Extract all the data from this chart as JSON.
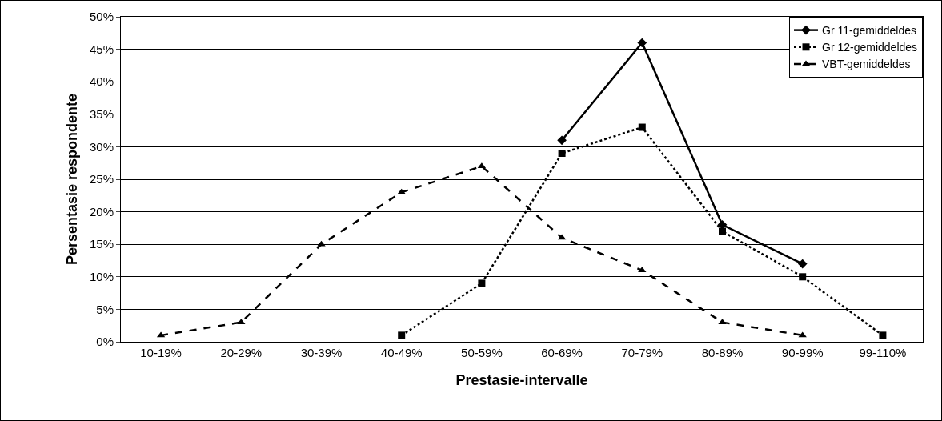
{
  "chart_data": {
    "type": "line",
    "xlabel": "Prestasie-intervalle",
    "ylabel": "Persentasie respondente",
    "categories": [
      "10-19%",
      "20-29%",
      "30-39%",
      "40-49%",
      "50-59%",
      "60-69%",
      "70-79%",
      "80-89%",
      "90-99%",
      "99-110%"
    ],
    "series": [
      {
        "name": "Gr 11-gemiddeldes",
        "color": "#000000",
        "marker": "diamond",
        "line_style": "solid",
        "values": [
          null,
          null,
          null,
          null,
          null,
          31,
          46,
          18,
          12,
          null
        ]
      },
      {
        "name": "Gr 12-gemiddeldes",
        "color": "#000000",
        "marker": "square",
        "line_style": "dotted",
        "values": [
          null,
          null,
          null,
          1,
          9,
          29,
          33,
          17,
          10,
          1
        ]
      },
      {
        "name": "VBT-gemiddeldes",
        "color": "#000000",
        "marker": "triangle",
        "line_style": "dashed",
        "values": [
          1,
          3,
          15,
          23,
          27,
          16,
          11,
          3,
          1,
          null
        ]
      }
    ],
    "ylim": [
      0,
      50
    ],
    "yticks": [
      {
        "value": 0,
        "label": "0%"
      },
      {
        "value": 5,
        "label": "5%"
      },
      {
        "value": 10,
        "label": "10%"
      },
      {
        "value": 15,
        "label": "15%"
      },
      {
        "value": 20,
        "label": "20%"
      },
      {
        "value": 25,
        "label": "25%"
      },
      {
        "value": 30,
        "label": "30%"
      },
      {
        "value": 35,
        "label": "35%"
      },
      {
        "value": 40,
        "label": "40%"
      },
      {
        "value": 45,
        "label": "45%"
      },
      {
        "value": 50,
        "label": "50%"
      }
    ],
    "grid": "y",
    "legend": "top right"
  }
}
